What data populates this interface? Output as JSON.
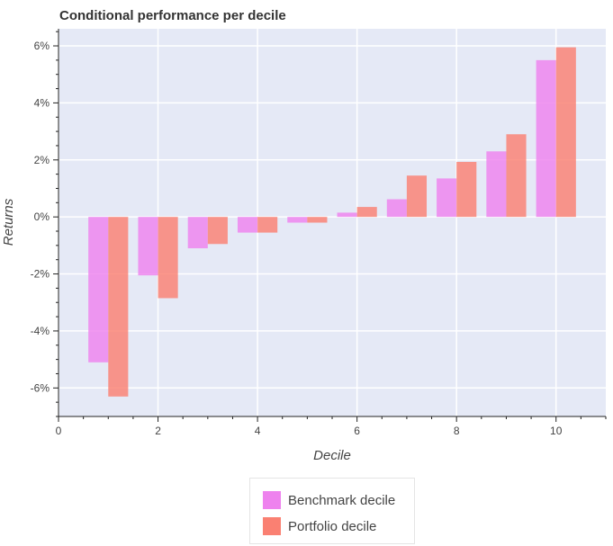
{
  "chart_data": {
    "type": "bar",
    "title": "Conditional performance per decile",
    "xlabel": "Decile",
    "ylabel": "Returns",
    "xlim": [
      0,
      11
    ],
    "ylim": [
      -7,
      6.6
    ],
    "xticks": [
      0,
      2,
      4,
      6,
      8,
      10
    ],
    "yticks": [
      -6,
      -4,
      -2,
      0,
      2,
      4,
      6
    ],
    "ytick_labels": [
      "-6%",
      "-4%",
      "-2%",
      "0%",
      "2%",
      "4%",
      "6%"
    ],
    "grid": true,
    "legend_position": "bottom",
    "categories": [
      1,
      2,
      3,
      4,
      5,
      6,
      7,
      8,
      9,
      10
    ],
    "series": [
      {
        "name": "Benchmark decile",
        "color": "#ee82ee",
        "values": [
          -5.1,
          -2.05,
          -1.1,
          -0.55,
          -0.2,
          0.15,
          0.62,
          1.35,
          2.3,
          5.5
        ]
      },
      {
        "name": "Portfolio decile",
        "color": "#fa8072",
        "values": [
          -6.3,
          -2.85,
          -0.95,
          -0.55,
          -0.2,
          0.35,
          1.45,
          1.93,
          2.9,
          5.95
        ]
      }
    ]
  }
}
